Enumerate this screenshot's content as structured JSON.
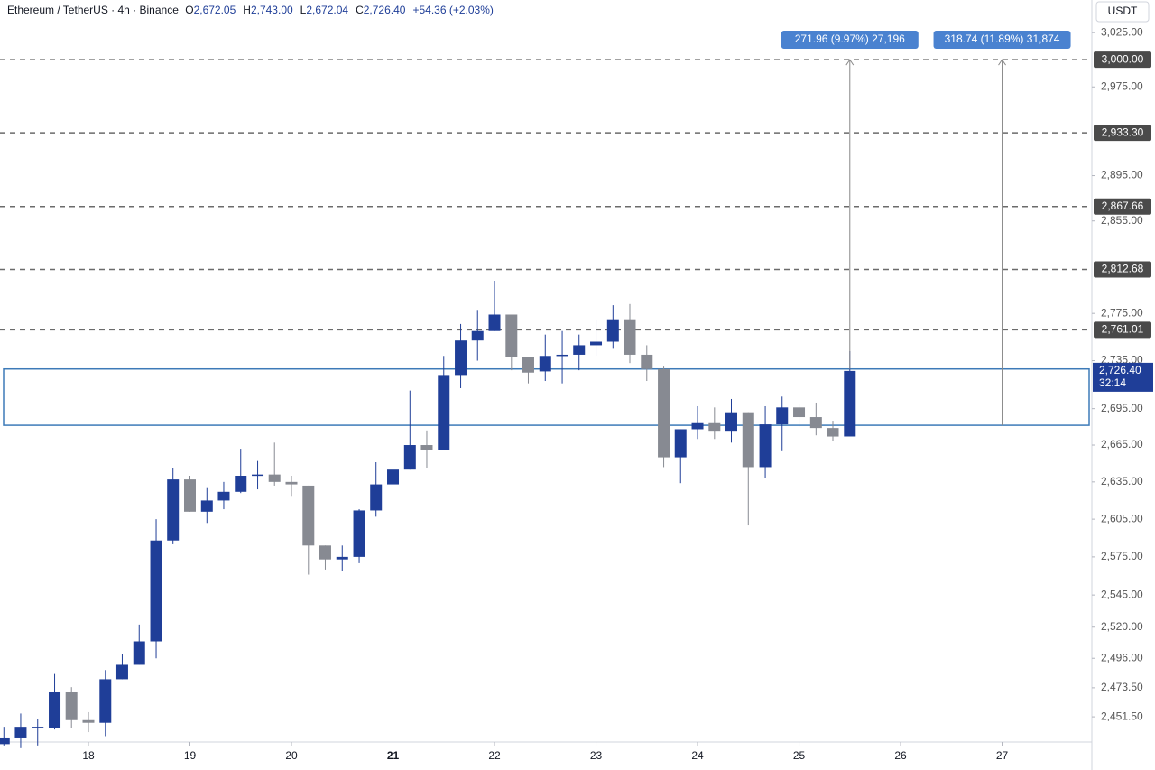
{
  "header": {
    "symbol": "Ethereum / TetherUS · 4h · Binance",
    "ohlc": [
      {
        "key": "O",
        "value": "2,672.05"
      },
      {
        "key": "H",
        "value": "2,743.00"
      },
      {
        "key": "L",
        "value": "2,672.04"
      },
      {
        "key": "C",
        "value": "2,726.40"
      }
    ],
    "change": "+54.36 (+2.03%)"
  },
  "chart_data": {
    "type": "candlestick",
    "log_scale": true,
    "currency": "USDT",
    "up_color": "#1f3e98",
    "down_color": "#878a92",
    "x": [
      17.167,
      17.333,
      17.5,
      17.667,
      17.833,
      18,
      18.167,
      18.333,
      18.5,
      18.667,
      18.833,
      19,
      19.167,
      19.333,
      19.5,
      19.667,
      19.833,
      20,
      20.167,
      20.333,
      20.5,
      20.667,
      20.833,
      21,
      21.167,
      21.333,
      21.5,
      21.667,
      21.833,
      22,
      22.167,
      22.333,
      22.5,
      22.667,
      22.833,
      23,
      23.167,
      23.333,
      23.5,
      23.667,
      23.833,
      24,
      24.167,
      24.333,
      24.5,
      24.667,
      24.833,
      25,
      25.167,
      25.333,
      25.5
    ],
    "open": [
      2431,
      2436,
      2443,
      2443,
      2470,
      2449,
      2447,
      2480,
      2491,
      2509,
      2588,
      2637,
      2611,
      2620,
      2627,
      2640,
      2641,
      2635,
      2632,
      2584,
      2573,
      2575,
      2612,
      2633,
      2645,
      2665,
      2661,
      2723,
      2752,
      2760,
      2774,
      2738,
      2726,
      2739,
      2740,
      2748,
      2751,
      2770,
      2740,
      2728,
      2655,
      2678,
      2683,
      2676,
      2692,
      2647,
      2682,
      2696,
      2688,
      2679,
      2672.05
    ],
    "high": [
      2444,
      2454,
      2450,
      2484,
      2474,
      2455,
      2487,
      2499,
      2522,
      2605,
      2646,
      2640,
      2630,
      2635,
      2662,
      2652,
      2667,
      2640,
      2632,
      2584,
      2584,
      2613,
      2651,
      2651,
      2710,
      2677,
      2739,
      2766,
      2778,
      2803,
      2774,
      2738,
      2757,
      2760,
      2757,
      2770,
      2782,
      2783,
      2748,
      2730,
      2678,
      2697,
      2696,
      2703,
      2692,
      2697,
      2705,
      2699,
      2700,
      2685,
      2743.0
    ],
    "low": [
      2430,
      2428,
      2430,
      2442,
      2443,
      2440,
      2437,
      2480,
      2491,
      2496,
      2585,
      2611,
      2602,
      2613,
      2626,
      2629,
      2632,
      2623,
      2561,
      2565,
      2564,
      2570,
      2607,
      2629,
      2645,
      2646,
      2661,
      2712,
      2735,
      2760,
      2727,
      2716,
      2718,
      2716,
      2727,
      2739,
      2745,
      2733,
      2718,
      2647,
      2634,
      2670,
      2670,
      2667,
      2600,
      2638,
      2660,
      2680,
      2673,
      2668,
      2672.04
    ],
    "close": [
      2436,
      2444,
      2444,
      2470,
      2449,
      2447,
      2480,
      2491,
      2509,
      2588,
      2637,
      2611,
      2620,
      2627,
      2640,
      2641,
      2635,
      2633,
      2584,
      2573,
      2575,
      2612,
      2633,
      2645,
      2665,
      2661,
      2723,
      2752,
      2760,
      2774,
      2738,
      2725,
      2739,
      2740,
      2748,
      2751,
      2770,
      2740,
      2728,
      2655,
      2678,
      2683,
      2676,
      2692,
      2647,
      2682,
      2696,
      2688,
      2679,
      2672,
      2726.4
    ],
    "xlim": [
      17.129,
      27.884
    ],
    "ylim": [
      2432.6,
      3055.5
    ],
    "xticks": [
      18,
      19,
      20,
      21,
      22,
      23,
      24,
      25,
      26,
      27
    ],
    "xtick_bold": 21,
    "yticks": [
      {
        "value": 3025,
        "label": "3,025.00"
      },
      {
        "value": 2975,
        "label": "2,975.00"
      },
      {
        "value": 2895,
        "label": "2,895.00"
      },
      {
        "value": 2855,
        "label": "2,855.00"
      },
      {
        "value": 2775,
        "label": "2,775.00"
      },
      {
        "value": 2735,
        "label": "2,735.00"
      },
      {
        "value": 2695,
        "label": "2,695.00"
      },
      {
        "value": 2665,
        "label": "2,665.00"
      },
      {
        "value": 2635,
        "label": "2,635.00"
      },
      {
        "value": 2605,
        "label": "2,605.00"
      },
      {
        "value": 2575,
        "label": "2,575.00"
      },
      {
        "value": 2545,
        "label": "2,545.00"
      },
      {
        "value": 2520,
        "label": "2,520.00"
      },
      {
        "value": 2496,
        "label": "2,496.00"
      },
      {
        "value": 2473.5,
        "label": "2,473.50"
      },
      {
        "value": 2451.5,
        "label": "2,451.50"
      }
    ],
    "levels": [
      {
        "value": 3000,
        "label": "3,000.00"
      },
      {
        "value": 2933.3,
        "label": "2,933.30"
      },
      {
        "value": 2867.66,
        "label": "2,867.66"
      },
      {
        "value": 2812.68,
        "label": "2,812.68"
      },
      {
        "value": 2761.01,
        "label": "2,761.01"
      }
    ],
    "zone": {
      "from": 2681.26,
      "to": 2728.04
    },
    "measures": [
      {
        "x": 25.5,
        "from": 2728.04,
        "to": 3000,
        "label": "271.96 (9.97%) 27,196"
      },
      {
        "x": 27.0,
        "from": 2681.26,
        "to": 3000,
        "label": "318.74 (11.89%) 31,874"
      }
    ],
    "last_price": {
      "value": 2726.4,
      "label": "2,726.40",
      "countdown": "32:14"
    }
  }
}
